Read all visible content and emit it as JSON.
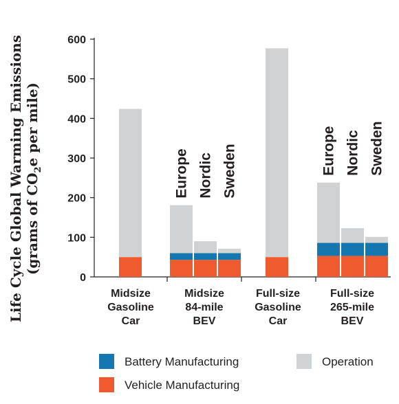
{
  "chart_data": {
    "type": "bar",
    "stacked": true,
    "ylabel_line1": "Life Cycle Global Warming Emissions",
    "ylabel_line2_prefix": "(grams of CO",
    "ylabel_line2_sub": "2",
    "ylabel_line2_suffix": "e per mile)",
    "ylim": [
      0,
      600
    ],
    "yticks": [
      "0",
      "100",
      "200",
      "300",
      "400",
      "500",
      "600"
    ],
    "grid": false,
    "groups": [
      {
        "label": [
          "Midsize",
          "Gasoline",
          "Car"
        ],
        "bars": [
          {
            "label": "",
            "vehicle": 50,
            "battery": 0,
            "operation": 374
          }
        ]
      },
      {
        "label": [
          "Midsize",
          "84-mile",
          "BEV"
        ],
        "bars": [
          {
            "label": "Europe",
            "vehicle": 43,
            "battery": 17,
            "operation": 121
          },
          {
            "label": "Nordic",
            "vehicle": 43,
            "battery": 17,
            "operation": 30
          },
          {
            "label": "Sweden",
            "vehicle": 43,
            "battery": 17,
            "operation": 11
          }
        ]
      },
      {
        "label": [
          "Full-size",
          "Gasoline",
          "Car"
        ],
        "bars": [
          {
            "label": "",
            "vehicle": 50,
            "battery": 0,
            "operation": 527
          }
        ]
      },
      {
        "label": [
          "Full-size",
          "265-mile",
          "BEV"
        ],
        "bars": [
          {
            "label": "Europe",
            "vehicle": 53,
            "battery": 33,
            "operation": 152
          },
          {
            "label": "Nordic",
            "vehicle": 53,
            "battery": 33,
            "operation": 37
          },
          {
            "label": "Sweden",
            "vehicle": 53,
            "battery": 33,
            "operation": 15
          }
        ]
      }
    ],
    "series": [
      {
        "key": "vehicle",
        "name": "Vehicle Manufacturing",
        "color": "#EF5A2F"
      },
      {
        "key": "battery",
        "name": "Battery Manufacturing",
        "color": "#1577B0"
      },
      {
        "key": "operation",
        "name": "Operation",
        "color": "#D1D2D4"
      }
    ],
    "legend": {
      "placement": "bottom",
      "items": [
        {
          "key": "battery",
          "name": "Battery Manufacturing",
          "color": "#1577B0"
        },
        {
          "key": "operation",
          "name": "Operation",
          "color": "#D1D2D4"
        },
        {
          "key": "vehicle",
          "name": "Vehicle Manufacturing",
          "color": "#EF5A2F"
        }
      ]
    }
  }
}
